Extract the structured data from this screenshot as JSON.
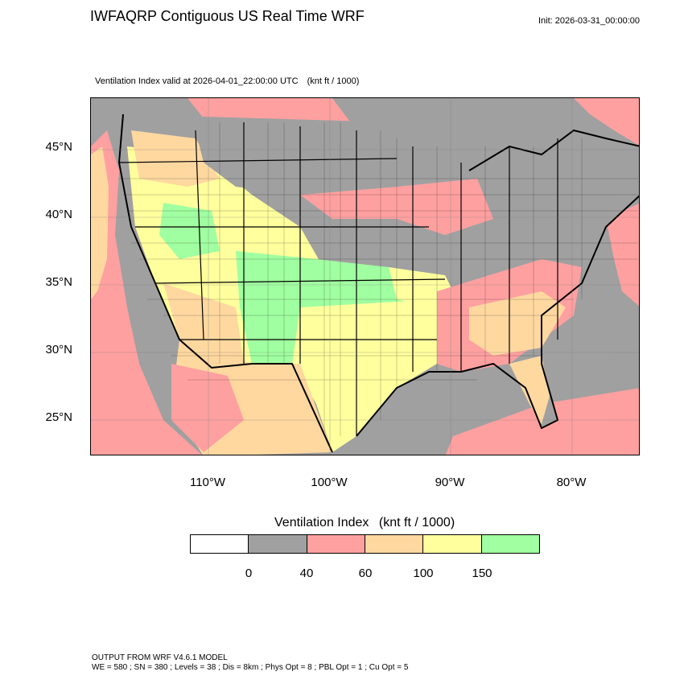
{
  "title": "IWFAQRP Contiguous US Real Time WRF",
  "init": "Init: 2026-03-31_00:00:00",
  "valid": {
    "text": "Ventilation Index valid at 2026-04-01_22:00:00 UTC",
    "units": "(knt ft / 1000)"
  },
  "map": {
    "lat_labels": [
      "45°N",
      "40°N",
      "35°N",
      "30°N",
      "25°N"
    ],
    "lon_labels": [
      "110°W",
      "100°W",
      "90°W",
      "80°W"
    ],
    "colors": {
      "none": "#ffffff",
      "low": "#a0a0a0",
      "pink": "#ffa0a0",
      "tan": "#ffd8a0",
      "yellow": "#ffff9e",
      "green": "#a0ffa0",
      "ocean": "#a0a0a0",
      "boundary": "#000000"
    }
  },
  "legend": {
    "title": "Ventilation Index",
    "units": "(knt ft / 1000)",
    "swatches": [
      "#ffffff",
      "#a0a0a0",
      "#ffa0a0",
      "#ffd8a0",
      "#ffff9e",
      "#a0ffa0"
    ],
    "ticks": [
      "0",
      "40",
      "60",
      "100",
      "150"
    ]
  },
  "footer": {
    "line1": "OUTPUT FROM WRF V4.6.1 MODEL",
    "line2": "WE = 580 ; SN = 380 ; Levels = 38 ; Dis = 8km ; Phys Opt = 8 ; PBL Opt = 1 ; Cu Opt = 5"
  }
}
